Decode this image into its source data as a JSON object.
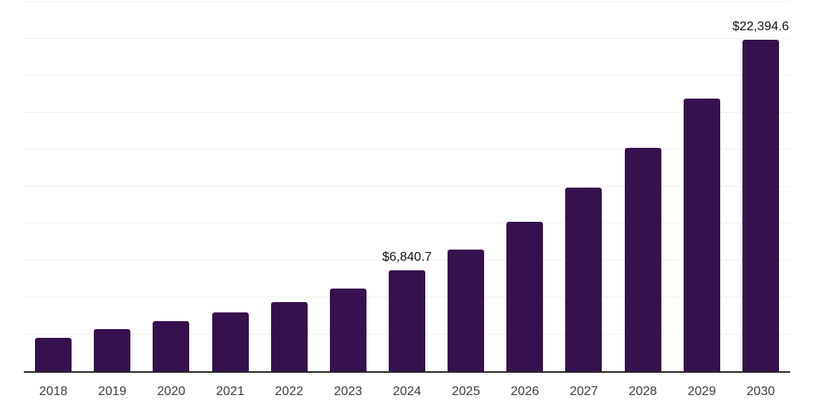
{
  "chart_data": {
    "type": "bar",
    "title": "",
    "xlabel": "",
    "ylabel": "",
    "categories": [
      "2018",
      "2019",
      "2020",
      "2021",
      "2022",
      "2023",
      "2024",
      "2025",
      "2026",
      "2027",
      "2028",
      "2029",
      "2030"
    ],
    "values": [
      2280,
      2860,
      3395,
      3960,
      4655,
      5580,
      6840.7,
      8225,
      10110,
      12420,
      15100,
      18460,
      22394.6
    ],
    "data_labels": {
      "2024": "$6,840.7",
      "2030": "$22,394.6"
    },
    "ylim": [
      0,
      25000
    ],
    "gridline_step": 2500,
    "grid": "horizontal",
    "legend_position": "none",
    "y_axis_tick_labels_visible": false,
    "bar_color": "#35124e"
  },
  "colors": {
    "bar": "#35124e",
    "gridline": "#f0f0f0",
    "axis_line": "#2b2b2b",
    "year_label": "#3d3d3d",
    "data_label": "#111111",
    "background": "#ffffff"
  }
}
